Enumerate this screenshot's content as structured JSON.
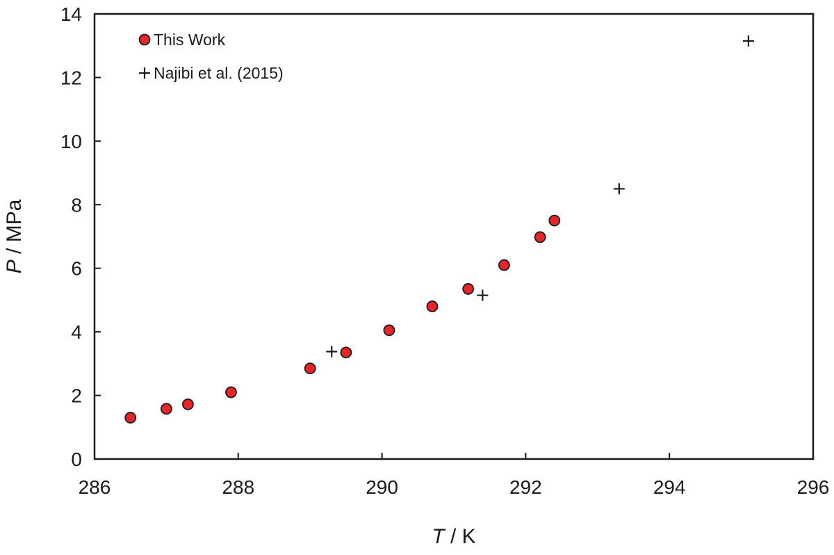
{
  "chart_data": {
    "type": "scatter",
    "xlim": [
      286,
      296
    ],
    "ylim": [
      0,
      14
    ],
    "x_ticks": [
      286,
      288,
      290,
      292,
      294,
      296
    ],
    "y_ticks": [
      0,
      2,
      4,
      6,
      8,
      10,
      12,
      14
    ],
    "x_tick_labels": [
      "286",
      "288",
      "290",
      "292",
      "294",
      "296"
    ],
    "y_tick_labels": [
      "0",
      "2",
      "4",
      "6",
      "8",
      "10",
      "12",
      "14"
    ],
    "xlabel": {
      "symbol": "T",
      "unit": " / K"
    },
    "ylabel": {
      "symbol": "P",
      "unit": " / MPa"
    },
    "grid": false,
    "legend_position": "top-left",
    "series": [
      {
        "name": "This Work",
        "marker": "circle",
        "color": "#e8242b",
        "edge_color": "#1a1a1a",
        "points": [
          {
            "x": 286.5,
            "y": 1.3
          },
          {
            "x": 287.0,
            "y": 1.58
          },
          {
            "x": 287.3,
            "y": 1.72
          },
          {
            "x": 287.9,
            "y": 2.1
          },
          {
            "x": 289.0,
            "y": 2.85
          },
          {
            "x": 289.5,
            "y": 3.35
          },
          {
            "x": 290.1,
            "y": 4.05
          },
          {
            "x": 290.7,
            "y": 4.8
          },
          {
            "x": 291.2,
            "y": 5.35
          },
          {
            "x": 291.7,
            "y": 6.1
          },
          {
            "x": 292.2,
            "y": 6.98
          },
          {
            "x": 292.4,
            "y": 7.5
          }
        ]
      },
      {
        "name": "Najibi et al. (2015)",
        "marker": "plus",
        "color": "#1a1a1a",
        "points": [
          {
            "x": 289.3,
            "y": 3.38
          },
          {
            "x": 291.4,
            "y": 5.15
          },
          {
            "x": 293.3,
            "y": 8.5
          },
          {
            "x": 295.1,
            "y": 13.15
          }
        ]
      }
    ]
  }
}
